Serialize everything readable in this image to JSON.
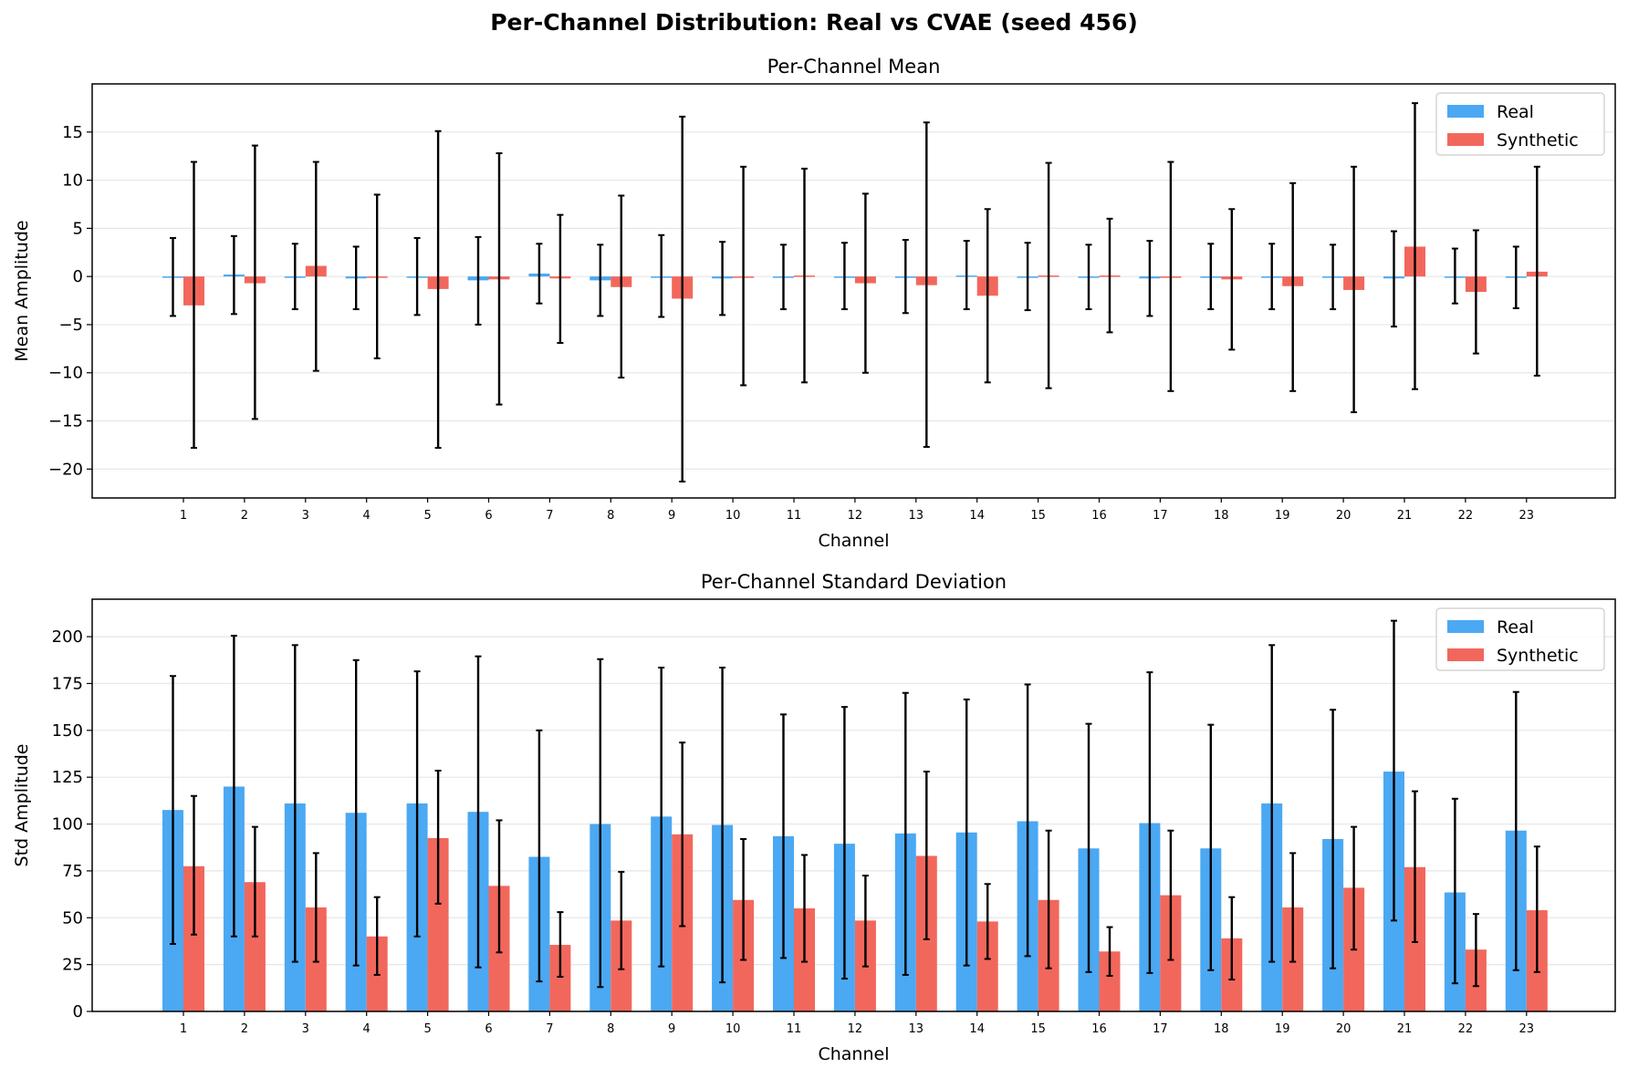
{
  "suptitle": "Per-Channel Distribution: Real vs CVAE (seed 456)",
  "colors": {
    "real": "#4ba8f2",
    "synthetic": "#f2675c",
    "errorbar": "#000000",
    "grid": "#e6e6e6"
  },
  "chart_data": [
    {
      "type": "bar",
      "title": "Per-Channel Mean",
      "xlabel": "Channel",
      "ylabel": "Mean Amplitude",
      "ylim": [
        -23,
        20
      ],
      "yticks": [
        -20,
        -15,
        -10,
        -5,
        0,
        5,
        10,
        15
      ],
      "grid": true,
      "legend": "top-right",
      "categories": [
        "1",
        "2",
        "3",
        "4",
        "5",
        "6",
        "7",
        "8",
        "9",
        "10",
        "11",
        "12",
        "13",
        "14",
        "15",
        "16",
        "17",
        "18",
        "19",
        "20",
        "21",
        "22",
        "23"
      ],
      "series": [
        {
          "name": "Real",
          "values": [
            -0.1,
            0.2,
            0.0,
            -0.2,
            0.0,
            -0.4,
            0.3,
            -0.4,
            0.0,
            -0.2,
            -0.1,
            0.0,
            0.0,
            0.1,
            0.0,
            -0.1,
            -0.2,
            0.0,
            0.0,
            -0.1,
            -0.2,
            0.0,
            -0.1
          ],
          "err_low": [
            -4.1,
            -3.9,
            -3.4,
            -3.4,
            -4.0,
            -5.0,
            -2.8,
            -4.1,
            -4.2,
            -4.0,
            -3.4,
            -3.4,
            -3.8,
            -3.4,
            -3.5,
            -3.4,
            -4.1,
            -3.4,
            -3.4,
            -3.4,
            -5.2,
            -2.8,
            -3.3
          ],
          "err_high": [
            4.0,
            4.2,
            3.4,
            3.1,
            4.0,
            4.1,
            3.4,
            3.3,
            4.3,
            3.6,
            3.3,
            3.5,
            3.8,
            3.7,
            3.5,
            3.3,
            3.7,
            3.4,
            3.4,
            3.3,
            4.7,
            2.9,
            3.1
          ]
        },
        {
          "name": "Synthetic",
          "values": [
            -3.0,
            -0.7,
            1.1,
            0.0,
            -1.3,
            -0.3,
            -0.2,
            -1.1,
            -2.3,
            0.0,
            0.1,
            -0.7,
            -0.9,
            -2.0,
            0.1,
            0.1,
            0.0,
            -0.3,
            -1.0,
            -1.4,
            3.1,
            -1.6,
            0.5
          ],
          "err_low": [
            -17.8,
            -14.8,
            -9.8,
            -8.5,
            -17.8,
            -13.3,
            -6.9,
            -10.5,
            -21.3,
            -11.3,
            -11.0,
            -10.0,
            -17.7,
            -11.0,
            -11.6,
            -5.8,
            -11.9,
            -7.6,
            -11.9,
            -14.1,
            -11.7,
            -8.0,
            -10.3
          ],
          "err_high": [
            11.9,
            13.6,
            11.9,
            8.5,
            15.1,
            12.8,
            6.4,
            8.4,
            16.6,
            11.4,
            11.2,
            8.6,
            16.0,
            7.0,
            11.8,
            6.0,
            11.9,
            7.0,
            9.7,
            11.4,
            18.0,
            4.8,
            11.4
          ]
        }
      ]
    },
    {
      "type": "bar",
      "title": "Per-Channel Standard Deviation",
      "xlabel": "Channel",
      "ylabel": "Std Amplitude",
      "ylim": [
        0,
        220
      ],
      "yticks": [
        0,
        25,
        50,
        75,
        100,
        125,
        150,
        175,
        200
      ],
      "grid": true,
      "legend": "top-right",
      "categories": [
        "1",
        "2",
        "3",
        "4",
        "5",
        "6",
        "7",
        "8",
        "9",
        "10",
        "11",
        "12",
        "13",
        "14",
        "15",
        "16",
        "17",
        "18",
        "19",
        "20",
        "21",
        "22",
        "23"
      ],
      "series": [
        {
          "name": "Real",
          "values": [
            107.5,
            120,
            111,
            106,
            111,
            106.5,
            82.5,
            100,
            104,
            99.5,
            93.5,
            89.5,
            95,
            95.5,
            101.5,
            87,
            100.5,
            87,
            111,
            92,
            128,
            63.5,
            96.5
          ],
          "err_low": [
            36,
            40,
            26.5,
            24.5,
            40,
            23.5,
            16,
            13,
            24,
            15.5,
            28.5,
            17.5,
            19.5,
            24.5,
            29.5,
            21,
            20.5,
            22,
            26.5,
            23,
            48.5,
            15,
            22
          ],
          "err_high": [
            179,
            200.5,
            195.5,
            187.5,
            181.5,
            189.5,
            150,
            188,
            183.5,
            183.5,
            158.5,
            162.5,
            170,
            166.5,
            174.5,
            153.5,
            181,
            153,
            195.5,
            161,
            208.5,
            113.5,
            170.5
          ]
        },
        {
          "name": "Synthetic",
          "values": [
            77.5,
            69,
            55.5,
            40,
            92.5,
            67,
            35.5,
            48.5,
            94.5,
            59.5,
            55,
            48.5,
            83,
            48,
            59.5,
            32,
            62,
            39,
            55.5,
            66,
            77,
            33,
            54
          ],
          "err_low": [
            41,
            40,
            26.5,
            19.5,
            57.5,
            31.5,
            18.5,
            22.5,
            45.5,
            27.5,
            26.5,
            24,
            38.5,
            28,
            23,
            19,
            27.5,
            17,
            26.5,
            33,
            37,
            13.5,
            21
          ],
          "err_high": [
            115,
            98.5,
            84.5,
            61,
            128.5,
            102,
            53,
            74.5,
            143.5,
            92,
            83.5,
            72.5,
            128,
            68,
            96.5,
            45,
            96.5,
            61,
            84.5,
            98.5,
            117.5,
            52,
            88
          ]
        }
      ]
    }
  ]
}
